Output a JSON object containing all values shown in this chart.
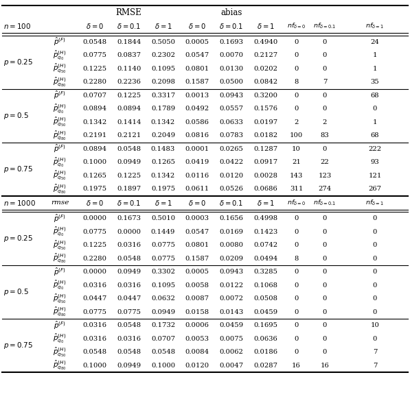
{
  "n100_data": {
    "p025": [
      [
        0.0548,
        0.1844,
        0.505,
        0.0005,
        0.1693,
        0.494,
        0,
        0,
        24
      ],
      [
        0.0775,
        0.0837,
        0.2302,
        0.0547,
        0.007,
        0.2127,
        0,
        0,
        1
      ],
      [
        0.1225,
        0.114,
        0.1095,
        0.0801,
        0.013,
        0.0202,
        0,
        0,
        1
      ],
      [
        0.228,
        0.2236,
        0.2098,
        0.1587,
        0.05,
        0.0842,
        8,
        7,
        35
      ]
    ],
    "p05": [
      [
        0.0707,
        0.1225,
        0.3317,
        0.0013,
        0.0943,
        0.32,
        0,
        0,
        68
      ],
      [
        0.0894,
        0.0894,
        0.1789,
        0.0492,
        0.0557,
        0.1576,
        0,
        0,
        0
      ],
      [
        0.1342,
        0.1414,
        0.1342,
        0.0586,
        0.0633,
        0.0197,
        2,
        2,
        1
      ],
      [
        0.2191,
        0.2121,
        0.2049,
        0.0816,
        0.0783,
        0.0182,
        100,
        83,
        68
      ]
    ],
    "p075": [
      [
        0.0894,
        0.0548,
        0.1483,
        0.0001,
        0.0265,
        0.1287,
        10,
        0,
        222
      ],
      [
        0.1,
        0.0949,
        0.1265,
        0.0419,
        0.0422,
        0.0917,
        21,
        22,
        93
      ],
      [
        0.1265,
        0.1225,
        0.1342,
        0.0116,
        0.012,
        0.0028,
        143,
        123,
        121
      ],
      [
        0.1975,
        0.1897,
        0.1975,
        0.0611,
        0.0526,
        0.0686,
        311,
        274,
        267
      ]
    ]
  },
  "n1000_data": {
    "p025": [
      [
        0.0,
        0.1673,
        0.501,
        0.0003,
        0.1656,
        0.4998,
        0,
        0,
        0
      ],
      [
        0.0775,
        0.0,
        0.1449,
        0.0547,
        0.0169,
        0.1423,
        0,
        0,
        0
      ],
      [
        0.1225,
        0.0316,
        0.0775,
        0.0801,
        0.008,
        0.0742,
        0,
        0,
        0
      ],
      [
        0.228,
        0.0548,
        0.0775,
        0.1587,
        0.0209,
        0.0494,
        8,
        0,
        0
      ]
    ],
    "p05": [
      [
        0.0,
        0.0949,
        0.3302,
        0.0005,
        0.0943,
        0.3285,
        0,
        0,
        0
      ],
      [
        0.0316,
        0.0316,
        0.1095,
        0.0058,
        0.0122,
        0.1068,
        0,
        0,
        0
      ],
      [
        0.0447,
        0.0447,
        0.0632,
        0.0087,
        0.0072,
        0.0508,
        0,
        0,
        0
      ],
      [
        0.0775,
        0.0775,
        0.0949,
        0.0158,
        0.0143,
        0.0459,
        0,
        0,
        0
      ]
    ],
    "p075": [
      [
        0.0316,
        0.0548,
        0.1732,
        0.0006,
        0.0459,
        0.1695,
        0,
        0,
        10
      ],
      [
        0.0316,
        0.0316,
        0.0707,
        0.0053,
        0.0075,
        0.0636,
        0,
        0,
        0
      ],
      [
        0.0548,
        0.0548,
        0.0548,
        0.0084,
        0.0062,
        0.0186,
        0,
        0,
        7
      ],
      [
        0.1,
        0.0949,
        0.1,
        0.012,
        0.0047,
        0.0287,
        16,
        16,
        7
      ]
    ]
  }
}
